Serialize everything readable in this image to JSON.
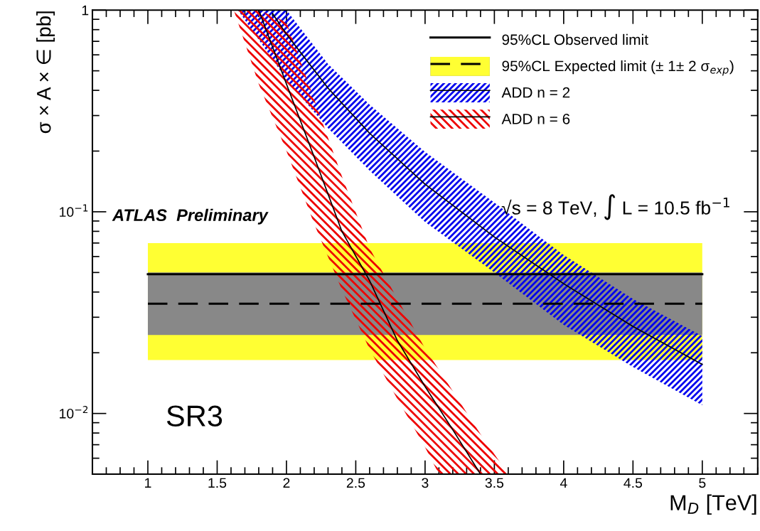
{
  "chart_data": {
    "type": "line",
    "xlabel": "M$_{D}$ [TeV]",
    "ylabel": "σ × A × ∈ [pb]",
    "log": "y",
    "xlim": [
      0.6,
      5.4
    ],
    "ylim": [
      0.005,
      1
    ],
    "xticks": [
      1,
      1.5,
      2,
      2.5,
      3,
      3.5,
      4,
      4.5,
      5
    ],
    "yticks": [
      {
        "value": 0.01,
        "label": "10$^{−2}$"
      },
      {
        "value": 0.1,
        "label": "10$^{−1}$"
      },
      1
    ],
    "legend": "top right",
    "grid": false,
    "marker": "none",
    "annotations": [
      "ATLAS  Preliminary",
      "√s = 8 TeV, ∫ L = 10.5 fb$^{−1}$",
      "SR3"
    ],
    "series": [
      {
        "name": "95%CL Observed limit",
        "color": "#000000",
        "line_style": "solid",
        "x": [
          1,
          5
        ],
        "values": [
          0.049,
          0.049
        ]
      },
      {
        "name": "95%CL Expected limit (± 1± 2 σ$_{exp}$)",
        "color": "#000000",
        "line_style": "dashed",
        "x": [
          1,
          5
        ],
        "values": [
          0.035,
          0.035
        ]
      },
      {
        "type": "area",
        "color": "#ffff33",
        "x": [
          1,
          5
        ],
        "values": [
          null,
          null
        ],
        "lower": [
          0.0184,
          0.0184
        ],
        "upper": [
          0.07,
          0.07
        ]
      },
      {
        "type": "area",
        "color": "#888888",
        "x": [
          1,
          5
        ],
        "values": [
          null,
          null
        ],
        "lower": [
          0.0245,
          0.0245
        ],
        "upper": [
          0.05,
          0.05
        ]
      },
      {
        "name": "ADD n = 2",
        "color": "#000000",
        "line_style": "solid",
        "x": [
          1.9,
          2.0,
          2.3,
          2.6,
          3.0,
          3.5,
          4.0,
          4.5,
          5.0
        ],
        "values": [
          0.96,
          0.76,
          0.41,
          0.245,
          0.137,
          0.075,
          0.044,
          0.027,
          0.0175
        ]
      },
      {
        "color": "#0000ee",
        "x": [
          1.65,
          1.9,
          2.0,
          2.3,
          2.6,
          3.0,
          3.5,
          4.0,
          4.5,
          5.0
        ],
        "values": [
          null,
          null,
          null,
          null,
          null,
          null,
          null,
          null,
          null,
          null
        ],
        "lower": [
          1.0,
          0.57,
          0.45,
          0.26,
          0.16,
          0.089,
          0.05,
          0.0275,
          0.017,
          0.011
        ],
        "upper": [
          1.0,
          1.0,
          1.0,
          0.54,
          0.34,
          0.198,
          0.111,
          0.061,
          0.037,
          0.0242
        ]
      },
      {
        "name": "ADD n = 6",
        "color": "#000000",
        "line_style": "solid",
        "x": [
          1.8,
          2.0,
          2.2,
          2.4,
          2.6,
          2.8,
          3.0,
          3.2,
          3.4
        ],
        "values": [
          1.0,
          0.43,
          0.187,
          0.08,
          0.0455,
          0.023,
          0.0136,
          0.0083,
          0.005
        ]
      },
      {
        "color": "#ee0000",
        "x": [
          1.62,
          1.8,
          2.0,
          2.2,
          2.4,
          2.6,
          2.8,
          3.0,
          3.1,
          3.2,
          3.4,
          3.6
        ],
        "values": [
          null,
          null,
          null,
          null,
          null,
          null,
          null,
          null,
          null,
          null,
          null,
          null
        ],
        "lower": [
          1.0,
          0.43,
          0.2,
          0.087,
          0.041,
          0.0208,
          0.0118,
          0.0068,
          0.005,
          0.005,
          0.005,
          0.005
        ],
        "upper": [
          1.0,
          1.0,
          0.87,
          0.36,
          0.15,
          0.066,
          0.037,
          0.021,
          0.0165,
          0.0129,
          0.0079,
          0.005
        ]
      }
    ]
  }
}
